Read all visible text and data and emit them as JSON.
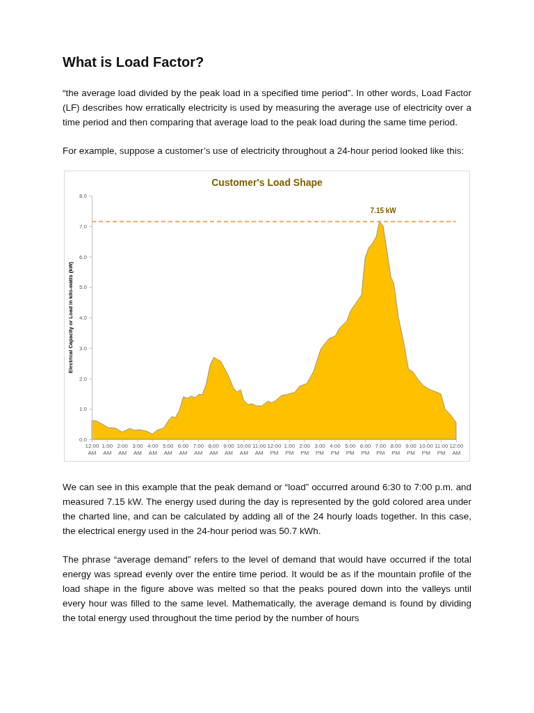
{
  "chart_data": {
    "type": "area",
    "title": "Customer's Load Shape",
    "ylabel": "Electrical Capacity or Load in kilo-watts (kW)",
    "annotations": [
      "What is Load Factor?",
      "“the average load divided by the peak load in a specified time period”.   In other words, Load Factor (LF) describes how erratically electricity is used by measuring the average use of electricity over a time period and then comparing that average load to the peak load during the same time period.",
      "For example, suppose a customer’s use of electricity throughout a 24-hour period looked like this:",
      "We can see in this example that the peak demand or “load” occurred around 6:30 to 7:00 p.m. and measured 7.15 kW.  The energy used during the day is represented by the gold colored area under the charted line, and can be calculated by adding all of the 24 hourly loads together. In this case, the electrical energy used in the 24-hour period was 50.7 kWh.",
      "The phrase “average demand” refers to the level of demand that would have occurred if the total energy was spread evenly over the entire time period.  It would be as if the mountain profile of the load shape in the figure above was melted so that the peaks poured down into the valleys until every hour was filled to the same level.  Mathematically, the average demand is found by dividing the total energy used throughout the time period by the number of hours"
    ],
    "x": [
      0,
      0.27,
      0.58,
      1.1,
      1.55,
      2.0,
      2.5,
      2.8,
      3.1,
      3.55,
      4.0,
      4.3,
      4.75,
      5.07,
      5.3,
      5.5,
      5.75,
      6.03,
      6.3,
      6.55,
      6.8,
      7.05,
      7.28,
      7.53,
      7.8,
      8.04,
      8.5,
      8.98,
      9.33,
      9.56,
      9.8,
      10.0,
      10.3,
      10.55,
      10.85,
      11.2,
      11.6,
      11.85,
      12.1,
      12.5,
      12.9,
      13.35,
      13.7,
      14.16,
      14.6,
      15.1,
      15.6,
      16.05,
      16.3,
      16.8,
      17.07,
      17.44,
      17.77,
      18.0,
      18.24,
      18.5,
      18.75,
      18.94,
      19.19,
      19.4,
      19.7,
      19.9,
      20.2,
      20.57,
      20.86,
      21.15,
      21.52,
      21.88,
      22.3,
      22.98,
      23.27,
      23.63,
      24
    ],
    "series": [
      {
        "color": "#ffc000",
        "values": [
          0.62,
          0.61,
          0.53,
          0.38,
          0.37,
          0.24,
          0.36,
          0.3,
          0.32,
          0.28,
          0.18,
          0.3,
          0.38,
          0.64,
          0.75,
          0.71,
          0.93,
          1.4,
          1.35,
          1.42,
          1.37,
          1.48,
          1.47,
          1.8,
          2.45,
          2.69,
          2.56,
          2.11,
          1.69,
          1.55,
          1.63,
          1.29,
          1.14,
          1.17,
          1.1,
          1.1,
          1.25,
          1.2,
          1.27,
          1.44,
          1.48,
          1.54,
          1.75,
          1.83,
          2.22,
          2.98,
          3.3,
          3.4,
          3.64,
          3.89,
          4.24,
          4.5,
          4.75,
          5.95,
          6.29,
          6.44,
          6.67,
          7.15,
          7.01,
          6.33,
          5.34,
          5.11,
          4.01,
          3.13,
          2.31,
          2.22,
          1.95,
          1.75,
          1.63,
          1.5,
          1.0,
          0.81,
          0.55
        ]
      }
    ],
    "xlim": [
      0,
      24
    ],
    "xticks": [
      {
        "value": 0,
        "label": "12:00 AM"
      },
      {
        "value": 1,
        "label": "1:00 AM"
      },
      {
        "value": 2,
        "label": "2:00 AM"
      },
      {
        "value": 3,
        "label": "3:00 AM"
      },
      {
        "value": 4,
        "label": "4:00 AM"
      },
      {
        "value": 5,
        "label": "5:00 AM"
      },
      {
        "value": 6,
        "label": "6:00 AM"
      },
      {
        "value": 7,
        "label": "7:00 AM"
      },
      {
        "value": 8,
        "label": "8:00 AM"
      },
      {
        "value": 9,
        "label": "9:00 AM"
      },
      {
        "value": 10,
        "label": "10:00 AM"
      },
      {
        "value": 11,
        "label": "11:00 AM"
      },
      {
        "value": 12,
        "label": "12:00 PM"
      },
      {
        "value": 13,
        "label": "1:00 PM"
      },
      {
        "value": 14,
        "label": "2:00 PM"
      },
      {
        "value": 15,
        "label": "3:00 PM"
      },
      {
        "value": 16,
        "label": "4:00 PM"
      },
      {
        "value": 17,
        "label": "5:00 PM"
      },
      {
        "value": 18,
        "label": "6:00 PM"
      },
      {
        "value": 19,
        "label": "7:00 PM"
      },
      {
        "value": 20,
        "label": "8:00 PM"
      },
      {
        "value": 21,
        "label": "9:00 PM"
      },
      {
        "value": 22,
        "label": "10:00 PM"
      },
      {
        "value": 23,
        "label": "11:00 PM"
      },
      {
        "value": 24,
        "label": "12:00 AM"
      }
    ],
    "ylim": [
      0,
      8
    ],
    "yticks": [
      {
        "value": 0,
        "label": "0.0"
      },
      {
        "value": 1,
        "label": "1.0"
      },
      {
        "value": 2,
        "label": "2.0"
      },
      {
        "value": 3,
        "label": "3.0"
      },
      {
        "value": 4,
        "label": "4.0"
      },
      {
        "value": 5,
        "label": "5.0"
      },
      {
        "value": 6,
        "label": "6.0"
      },
      {
        "value": 7,
        "label": "7.0"
      },
      {
        "value": 8,
        "label": "8.0"
      }
    ],
    "ref_lines": [
      {
        "axis": "y",
        "value": 7.15,
        "label": "7.15 kW",
        "color": "#f4a460",
        "line_style": "dashed"
      }
    ],
    "grid": false
  }
}
